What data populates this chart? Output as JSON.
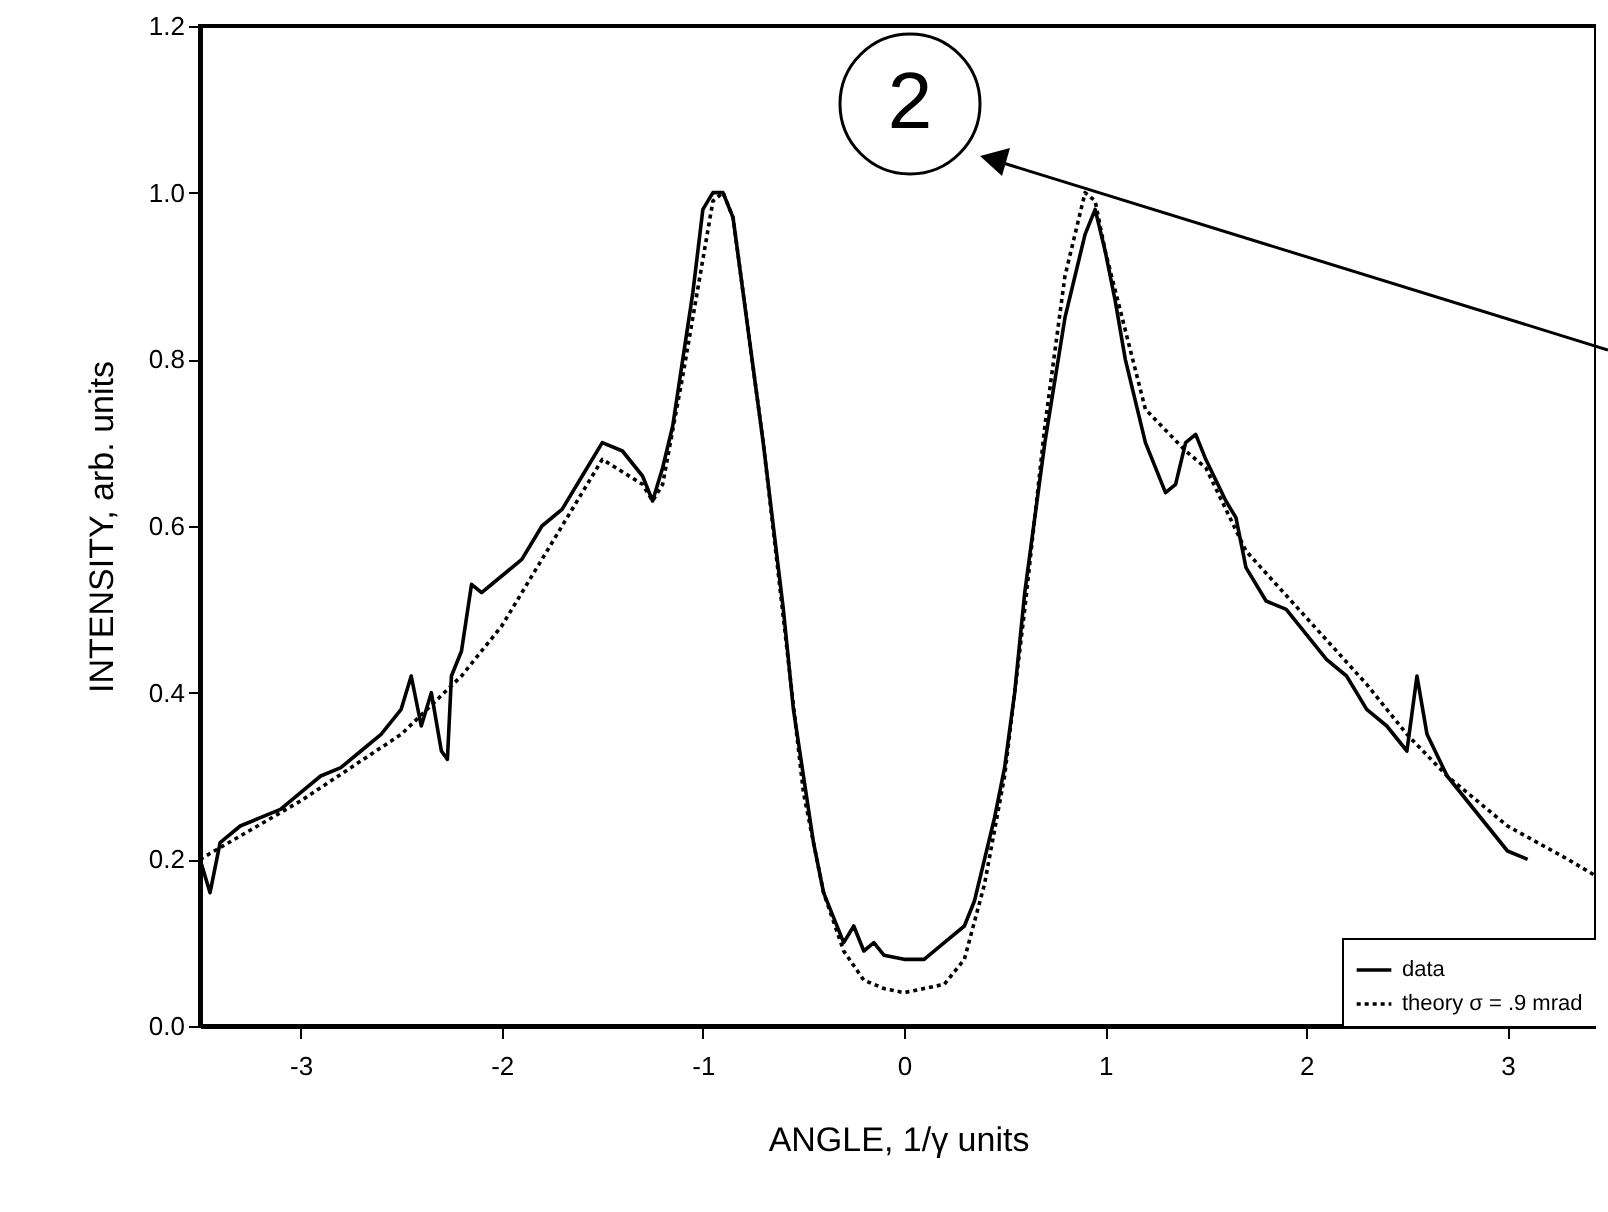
{
  "chart_data": {
    "type": "line",
    "xlabel": "ANGLE, 1/γ units",
    "ylabel": "INTENSITY, arb. units",
    "xlim": [
      -3.5,
      3.44
    ],
    "ylim": [
      0,
      1.2
    ],
    "xticks": [
      -3,
      -2,
      -1,
      0,
      1,
      2,
      3
    ],
    "yticks": [
      {
        "value": 0,
        "label": "0.0"
      },
      {
        "value": 0.2,
        "label": "0.2"
      },
      {
        "value": 0.4,
        "label": "0.4"
      },
      {
        "value": 0.6,
        "label": "0.6"
      },
      {
        "value": 0.8,
        "label": "0.8"
      },
      {
        "value": 1,
        "label": "1.0"
      },
      {
        "value": 1.2,
        "label": "1.2"
      }
    ],
    "grid": false,
    "legend": "bottom right",
    "marker": "none",
    "annotations": [
      "2"
    ],
    "series": [
      {
        "name": "data",
        "color": "#000000",
        "line_style": "solid",
        "x": [
          -3.5,
          -3.45,
          -3.4,
          -3.3,
          -3.2,
          -3.1,
          -3.0,
          -2.9,
          -2.8,
          -2.7,
          -2.6,
          -2.5,
          -2.45,
          -2.4,
          -2.35,
          -2.3,
          -2.27,
          -2.25,
          -2.2,
          -2.15,
          -2.1,
          -2.0,
          -1.9,
          -1.8,
          -1.7,
          -1.6,
          -1.5,
          -1.4,
          -1.3,
          -1.25,
          -1.2,
          -1.15,
          -1.1,
          -1.05,
          -1.0,
          -0.95,
          -0.9,
          -0.85,
          -0.8,
          -0.7,
          -0.6,
          -0.55,
          -0.5,
          -0.45,
          -0.4,
          -0.35,
          -0.3,
          -0.25,
          -0.2,
          -0.15,
          -0.1,
          0,
          0.1,
          0.2,
          0.3,
          0.35,
          0.4,
          0.45,
          0.5,
          0.55,
          0.6,
          0.7,
          0.8,
          0.85,
          0.9,
          0.95,
          1.0,
          1.05,
          1.1,
          1.2,
          1.3,
          1.35,
          1.4,
          1.45,
          1.5,
          1.6,
          1.65,
          1.7,
          1.8,
          1.9,
          2.0,
          2.1,
          2.2,
          2.3,
          2.4,
          2.5,
          2.55,
          2.6,
          2.7,
          2.8,
          2.9,
          3.0,
          3.1
        ],
        "values": [
          0.2,
          0.16,
          0.22,
          0.24,
          0.25,
          0.26,
          0.28,
          0.3,
          0.31,
          0.33,
          0.35,
          0.38,
          0.42,
          0.36,
          0.4,
          0.33,
          0.32,
          0.42,
          0.45,
          0.53,
          0.52,
          0.54,
          0.56,
          0.6,
          0.62,
          0.66,
          0.7,
          0.69,
          0.66,
          0.63,
          0.67,
          0.72,
          0.8,
          0.88,
          0.98,
          1.0,
          1.0,
          0.97,
          0.88,
          0.7,
          0.5,
          0.38,
          0.3,
          0.22,
          0.16,
          0.13,
          0.1,
          0.12,
          0.09,
          0.1,
          0.085,
          0.08,
          0.08,
          0.1,
          0.12,
          0.15,
          0.2,
          0.25,
          0.31,
          0.4,
          0.52,
          0.7,
          0.85,
          0.9,
          0.95,
          0.98,
          0.93,
          0.87,
          0.8,
          0.7,
          0.64,
          0.65,
          0.7,
          0.71,
          0.68,
          0.63,
          0.61,
          0.55,
          0.51,
          0.5,
          0.47,
          0.44,
          0.42,
          0.38,
          0.36,
          0.33,
          0.42,
          0.35,
          0.3,
          0.27,
          0.24,
          0.21,
          0.2
        ]
      },
      {
        "name": "theory σ = .9 mrad",
        "color": "#000000",
        "line_style": "dotted",
        "x": [
          -3.5,
          -3.0,
          -2.5,
          -2.2,
          -2.0,
          -1.5,
          -1.3,
          -1.25,
          -1.2,
          -1.1,
          -1.0,
          -0.95,
          -0.9,
          -0.85,
          -0.7,
          -0.5,
          -0.4,
          -0.3,
          -0.2,
          -0.1,
          0,
          0.1,
          0.2,
          0.3,
          0.4,
          0.5,
          0.6,
          0.7,
          0.8,
          0.9,
          0.95,
          1.0,
          1.2,
          1.4,
          1.5,
          1.7,
          2.0,
          2.3,
          2.5,
          2.7,
          3.0,
          3.3,
          3.44
        ],
        "values": [
          0.2,
          0.27,
          0.35,
          0.42,
          0.48,
          0.68,
          0.65,
          0.63,
          0.65,
          0.78,
          0.92,
          0.99,
          1.0,
          0.97,
          0.7,
          0.28,
          0.16,
          0.09,
          0.055,
          0.045,
          0.04,
          0.045,
          0.05,
          0.08,
          0.17,
          0.3,
          0.5,
          0.72,
          0.9,
          1.0,
          0.99,
          0.93,
          0.74,
          0.69,
          0.67,
          0.57,
          0.49,
          0.41,
          0.35,
          0.3,
          0.24,
          0.2,
          0.18
        ]
      }
    ]
  }
}
